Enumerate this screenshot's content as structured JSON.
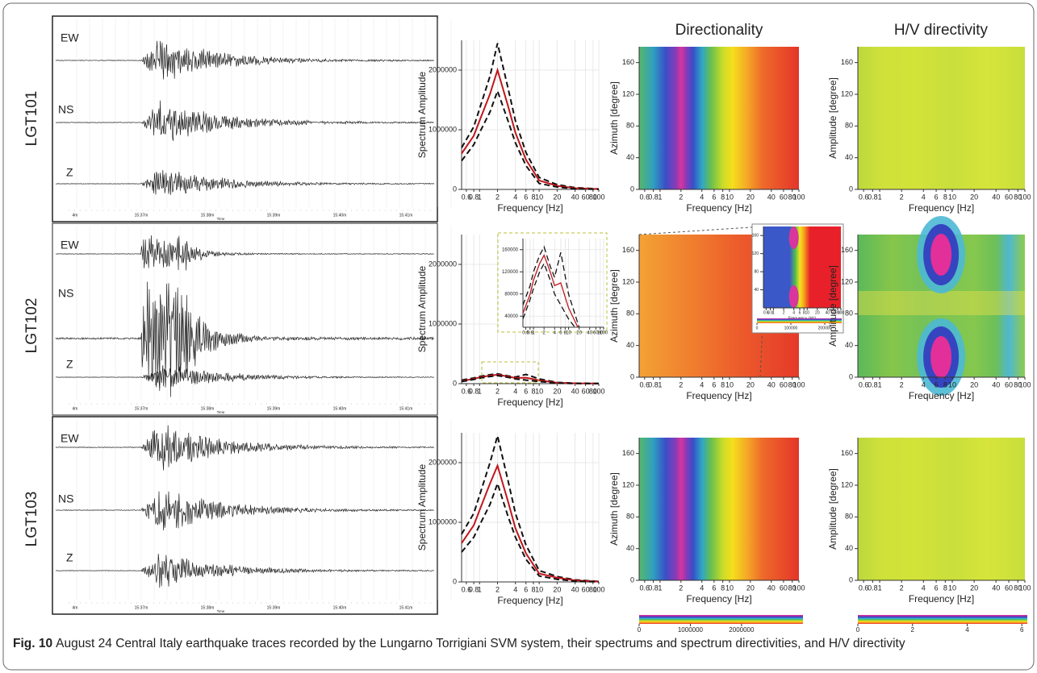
{
  "column_titles": [
    "Directionality",
    "H/V directivity"
  ],
  "time_ticks": [
    "4m",
    "15:37m",
    "15:38m",
    "15:39m",
    "15:40m",
    "15:41m"
  ],
  "time_label": "Time",
  "rows": [
    {
      "station": "LGT101",
      "components": [
        "EW",
        "NS",
        "Z"
      ],
      "spectrum": {
        "type": "line",
        "ylabel": "Spectrum Amplitude",
        "xlabel": "Frequency [Hz]",
        "log_x": true,
        "grid": true,
        "xlim": [
          0.5,
          100
        ],
        "ylim": [
          0,
          2500000
        ],
        "xticks": [
          0.6,
          0.8,
          1,
          2,
          4,
          6,
          8,
          10,
          20,
          40,
          60,
          80,
          100
        ],
        "yticks": [
          0,
          1000000,
          2000000
        ],
        "x": [
          0.5,
          0.8,
          1,
          1.5,
          2,
          3,
          4,
          6,
          10,
          20,
          40,
          100
        ],
        "series": [
          {
            "color": "#111111",
            "dash": true,
            "values": [
              700000,
              1050000,
              1350000,
              1900000,
              2450000,
              1700000,
              1150000,
              620000,
              200000,
              80000,
              30000,
              8000
            ]
          },
          {
            "color": "#c0161c",
            "dash": false,
            "values": [
              600000,
              900000,
              1150000,
              1600000,
              2000000,
              1400000,
              950000,
              500000,
              150000,
              60000,
              20000,
              5000
            ]
          },
          {
            "color": "#111111",
            "dash": true,
            "values": [
              480000,
              750000,
              950000,
              1300000,
              1650000,
              1150000,
              780000,
              400000,
              100000,
              40000,
              10000,
              2000
            ]
          }
        ]
      },
      "directionality": {
        "type": "heatmap",
        "ylabel": "Azimuth [degree]",
        "xlabel": "Frequency [Hz]",
        "log_x": true,
        "xlim": [
          0.5,
          100
        ],
        "ylim": [
          0,
          180
        ],
        "xticks": [
          0.6,
          0.8,
          1,
          2,
          4,
          6,
          8,
          10,
          20,
          40,
          60,
          80,
          100
        ],
        "yticks": [
          0,
          40,
          80,
          120,
          160
        ]
      },
      "hv": {
        "type": "heatmap",
        "ylabel": "Amplitude [degree]",
        "xlabel": "Frequency [Hz]",
        "log_x": true,
        "xlim": [
          0.5,
          100
        ],
        "ylim": [
          0,
          180
        ],
        "xticks": [
          0.6,
          0.8,
          1,
          2,
          4,
          6,
          8,
          10,
          20,
          40,
          60,
          80,
          100
        ],
        "yticks": [
          0,
          40,
          80,
          120,
          160
        ]
      }
    },
    {
      "station": "LGT102",
      "components": [
        "EW",
        "NS",
        "Z"
      ],
      "spectrum": {
        "type": "line",
        "ylabel": "Spectrum Amplitude",
        "xlabel": "Frequency [Hz]",
        "log_x": true,
        "grid": true,
        "xlim": [
          0.5,
          100
        ],
        "ylim": [
          0,
          2500000
        ],
        "xticks": [
          0.6,
          0.8,
          1,
          2,
          4,
          6,
          8,
          10,
          20,
          40,
          60,
          80,
          100
        ],
        "yticks": [
          0,
          1000000,
          2000000
        ],
        "x": [
          0.5,
          0.8,
          1,
          1.5,
          2,
          3,
          4,
          6,
          10,
          20,
          40,
          100
        ],
        "series": [
          {
            "color": "#111111",
            "dash": true,
            "values": [
              60000,
              95000,
              120000,
              150000,
              165000,
              130000,
              110000,
              155000,
              80000,
              20000,
              8000,
              3000
            ]
          },
          {
            "color": "#c0161c",
            "dash": false,
            "values": [
              45000,
              80000,
              105000,
              135000,
              150000,
              120000,
              95000,
              100000,
              55000,
              15000,
              5000,
              2000
            ]
          },
          {
            "color": "#111111",
            "dash": true,
            "values": [
              35000,
              70000,
              90000,
              120000,
              135000,
              105000,
              80000,
              60000,
              35000,
              10000,
              3000,
              1000
            ]
          }
        ],
        "inset": {
          "log_x": true,
          "grid": true,
          "xlim": [
            0.5,
            100
          ],
          "ylim": [
            20000,
            180000
          ],
          "xticks": [
            0.6,
            0.8,
            1,
            2,
            4,
            6,
            8,
            10,
            20,
            40,
            60,
            80,
            100
          ],
          "yticks": [
            40000,
            80000,
            120000,
            160000
          ]
        }
      },
      "directionality": {
        "type": "heatmap",
        "ylabel": "Azimuth [degree]",
        "xlabel": "Frequency [Hz]",
        "log_x": true,
        "xlim": [
          0.5,
          100
        ],
        "ylim": [
          0,
          180
        ],
        "xticks": [
          0.6,
          0.8,
          1,
          2,
          4,
          6,
          8,
          10,
          20,
          40,
          60,
          80,
          100
        ],
        "yticks": [
          0,
          40,
          80,
          120,
          160
        ],
        "inset": {
          "xlabel": "Frequency (Hz)",
          "log_x": true,
          "xlim": [
            0.5,
            100
          ],
          "ylim": [
            0,
            180
          ],
          "xticks": [
            0.6,
            0.8,
            1,
            2,
            4,
            6,
            8,
            10,
            20,
            40,
            60,
            80,
            100
          ],
          "yticks": [
            40,
            80,
            120,
            160
          ],
          "colorbar": {
            "lim": [
              0,
              250000
            ],
            "ticks": [
              0,
              100000,
              200000
            ]
          }
        }
      },
      "hv": {
        "type": "heatmap",
        "ylabel": "Amplitude [degree]",
        "xlabel": "Frequency [Hz]",
        "log_x": true,
        "xlim": [
          0.5,
          100
        ],
        "ylim": [
          0,
          180
        ],
        "xticks": [
          0.6,
          0.8,
          1,
          2,
          4,
          6,
          8,
          10,
          20,
          40,
          60,
          80,
          100
        ],
        "yticks": [
          0,
          40,
          80,
          120,
          160
        ]
      }
    },
    {
      "station": "LGT103",
      "components": [
        "EW",
        "NS",
        "Z"
      ],
      "spectrum": {
        "type": "line",
        "ylabel": "Spectrum Amplitude",
        "xlabel": "Frequency [Hz]",
        "log_x": true,
        "grid": true,
        "xlim": [
          0.5,
          100
        ],
        "ylim": [
          0,
          2500000
        ],
        "xticks": [
          0.6,
          0.8,
          1,
          2,
          4,
          6,
          8,
          10,
          20,
          40,
          60,
          80,
          100
        ],
        "yticks": [
          0,
          1000000,
          2000000
        ],
        "x": [
          0.5,
          0.8,
          1,
          1.5,
          2,
          3,
          4,
          6,
          10,
          20,
          40,
          100
        ],
        "series": [
          {
            "color": "#111111",
            "dash": true,
            "values": [
              800000,
              1150000,
              1450000,
              2000000,
              2450000,
              1700000,
              1150000,
              620000,
              190000,
              90000,
              35000,
              8000
            ]
          },
          {
            "color": "#c0161c",
            "dash": false,
            "values": [
              650000,
              950000,
              1200000,
              1650000,
              1950000,
              1350000,
              900000,
              480000,
              140000,
              70000,
              25000,
              5000
            ]
          },
          {
            "color": "#111111",
            "dash": true,
            "values": [
              500000,
              750000,
              950000,
              1300000,
              1650000,
              1100000,
              750000,
              380000,
              100000,
              45000,
              12000,
              2000
            ]
          }
        ]
      },
      "directionality": {
        "type": "heatmap",
        "ylabel": "Azimuth [degree]",
        "xlabel": "Frequency [Hz]",
        "log_x": true,
        "xlim": [
          0.5,
          100
        ],
        "ylim": [
          0,
          180
        ],
        "xticks": [
          0.6,
          0.8,
          1,
          2,
          4,
          6,
          8,
          10,
          20,
          40,
          60,
          80,
          100
        ],
        "yticks": [
          0,
          40,
          80,
          120,
          160
        ]
      },
      "hv": {
        "type": "heatmap",
        "ylabel": "Amplitude [degree]",
        "xlabel": "Frequency [Hz]",
        "log_x": true,
        "xlim": [
          0.5,
          100
        ],
        "ylim": [
          0,
          180
        ],
        "xticks": [
          0.6,
          0.8,
          1,
          2,
          4,
          6,
          8,
          10,
          20,
          40,
          60,
          80,
          100
        ],
        "yticks": [
          0,
          40,
          80,
          120,
          160
        ]
      }
    }
  ],
  "colorbars": [
    {
      "lim": [
        0,
        3200000
      ],
      "ticks": [
        0,
        1000000,
        2000000
      ]
    },
    {
      "lim": [
        0,
        6.2
      ],
      "ticks": [
        0,
        2,
        4,
        6
      ]
    }
  ],
  "caption": {
    "label": "Fig. 10",
    "text": "August 24 Central Italy earthquake traces recorded by the Lungarno Torrigiani SVM system, their spectrums and spectrum directivities, and H/V directivity"
  }
}
